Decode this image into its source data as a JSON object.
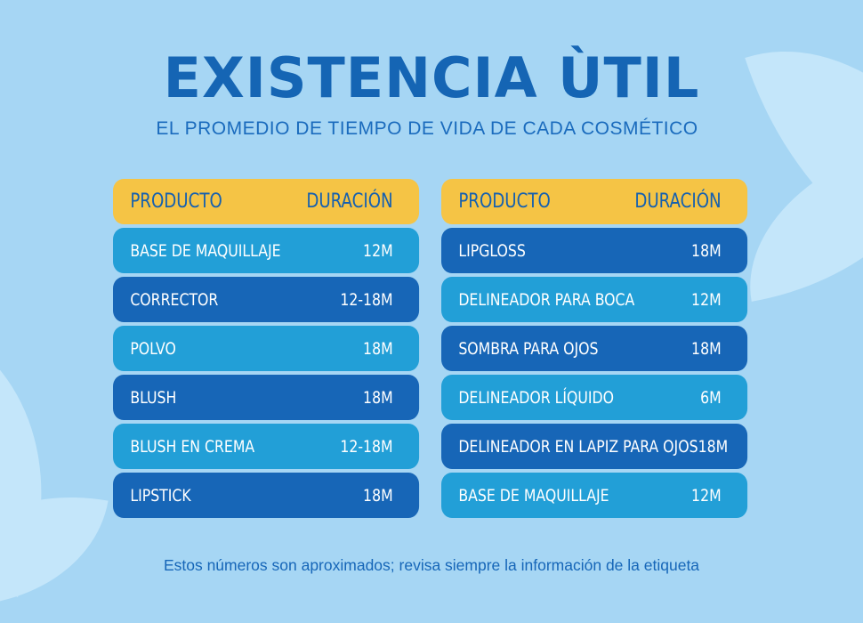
{
  "title": "EXISTENCIA ÙTIL",
  "subtitle": "EL PROMEDIO DE TIEMPO DE VIDA DE CADA COSMÉTICO",
  "tables": [
    {
      "header": {
        "product": "PRODUCTO",
        "duration": "DURACIÓN"
      },
      "rows": [
        {
          "product": "BASE DE MAQUILLAJE",
          "duration": "12M"
        },
        {
          "product": "CORRECTOR",
          "duration": "12-18M"
        },
        {
          "product": "POLVO",
          "duration": "18M"
        },
        {
          "product": "BLUSH",
          "duration": "18M"
        },
        {
          "product": "BLUSH EN CREMA",
          "duration": "12-18M"
        },
        {
          "product": "LIPSTICK",
          "duration": "18M"
        }
      ]
    },
    {
      "header": {
        "product": "PRODUCTO",
        "duration": "DURACIÓN"
      },
      "rows": [
        {
          "product": "LIPGLOSS",
          "duration": "18M"
        },
        {
          "product": "DELINEADOR PARA BOCA",
          "duration": "12M"
        },
        {
          "product": "SOMBRA PARA OJOS",
          "duration": "18M"
        },
        {
          "product": "DELINEADOR LÍQUIDO",
          "duration": "6M"
        },
        {
          "product": "DELINEADOR EN LAPIZ PARA OJOS",
          "duration": "18M"
        },
        {
          "product": "BASE DE MAQUILLAJE",
          "duration": "12M"
        }
      ]
    }
  ],
  "footnote": "Estos números son aproximados; revisa siempre la información de la etiqueta",
  "colors": {
    "background": "#a6d6f4",
    "header": "#f5c445",
    "row_light": "#229fd7",
    "row_dark": "#1766b7",
    "title": "#1565b4"
  }
}
